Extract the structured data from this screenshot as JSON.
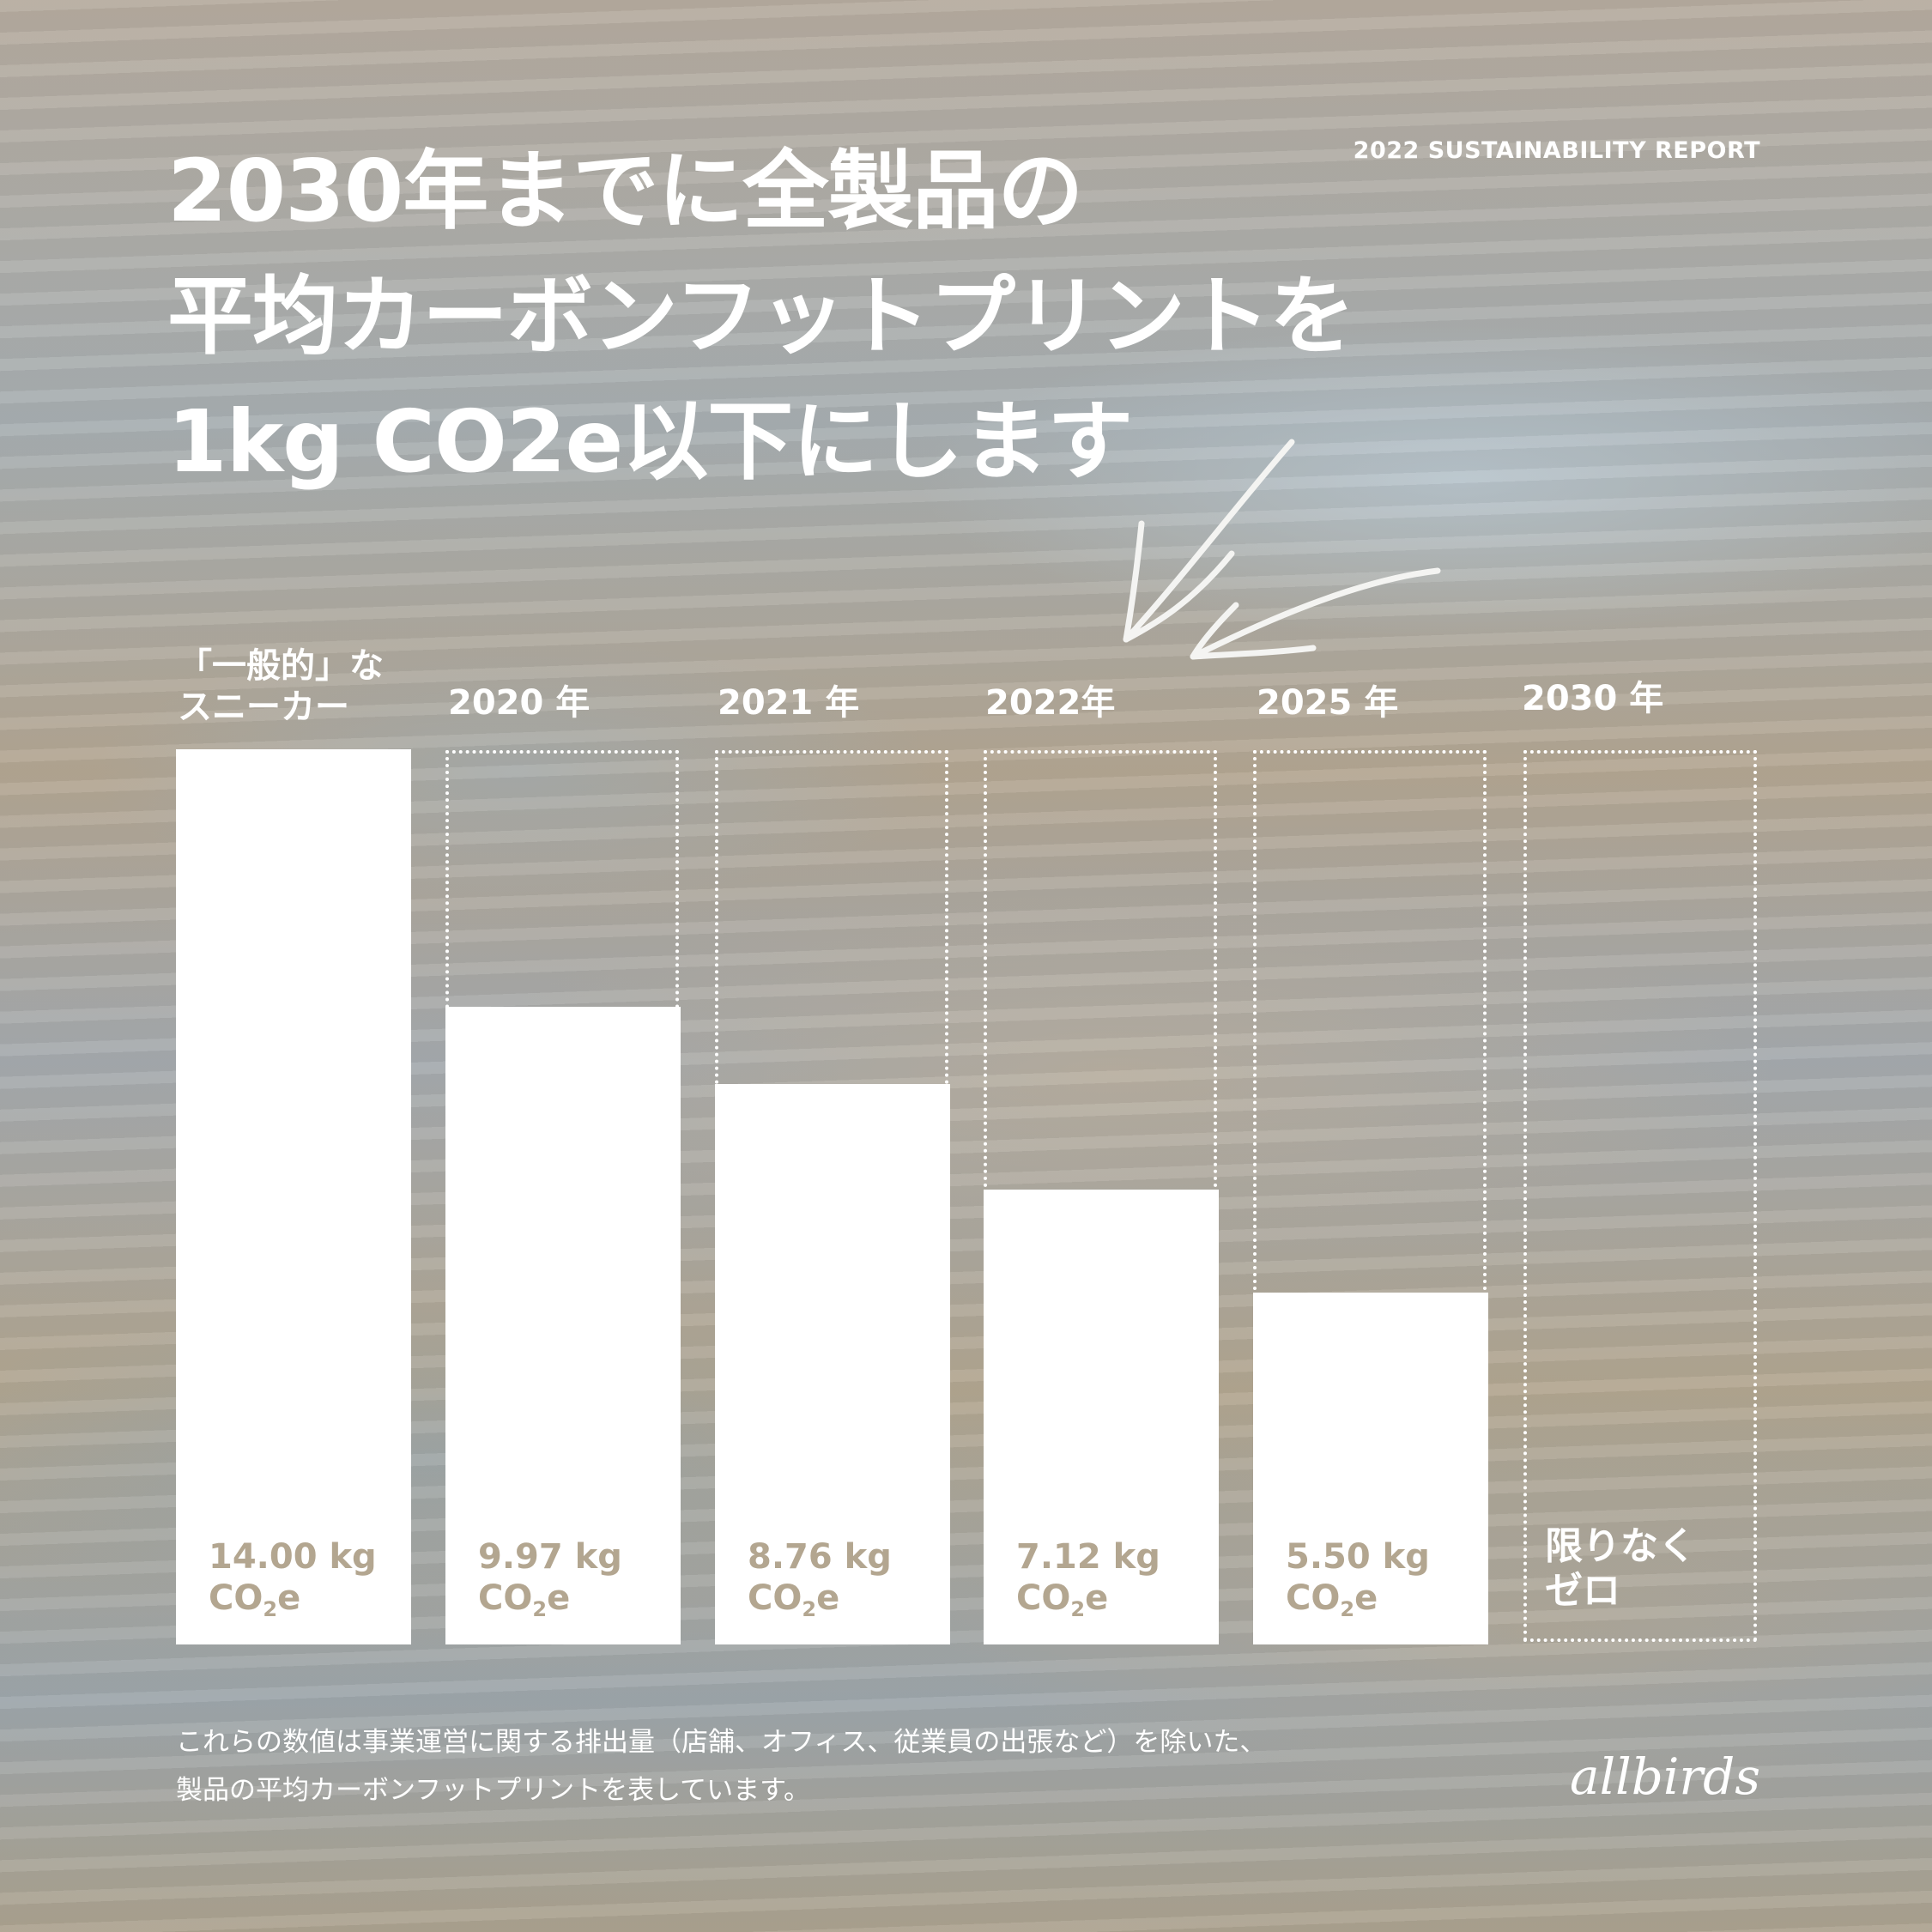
{
  "header": {
    "headline": [
      "2030年までに全製品の",
      "平均カーボンフットプリントを",
      "1kg CO2e以下にします"
    ],
    "report_label": "2022 SUSTAINABILITY REPORT"
  },
  "chart_data": {
    "type": "bar",
    "categories": [
      [
        "「一般的」な",
        "スニーカー"
      ],
      [
        "2020 年"
      ],
      [
        "2021 年"
      ],
      [
        "2022年"
      ],
      [
        "2025 年"
      ],
      [
        "2030 年"
      ]
    ],
    "values": [
      14.0,
      9.97,
      8.76,
      7.12,
      5.5,
      0
    ],
    "value_labels": [
      "14.00 kg",
      "9.97 kg",
      "8.76 kg",
      "7.12 kg",
      "5.50 kg",
      ""
    ],
    "unit_label": {
      "base": "CO",
      "sub": "2",
      "suffix": "e"
    },
    "final_label": [
      "限りなく",
      "ゼロ"
    ],
    "ylim": [
      0,
      14
    ],
    "grid": false,
    "legend": "none",
    "colors": {
      "bar": "#ffffff",
      "outline": "#ffffff",
      "value_text": "#b3a690"
    }
  },
  "footer": {
    "note": [
      "これらの数値は事業運営に関する排出量（店舗、オフィス、従業員の出張など）を除いた、",
      "製品の平均カーボンフットプリントを表しています。"
    ],
    "brand": "allbirds"
  }
}
